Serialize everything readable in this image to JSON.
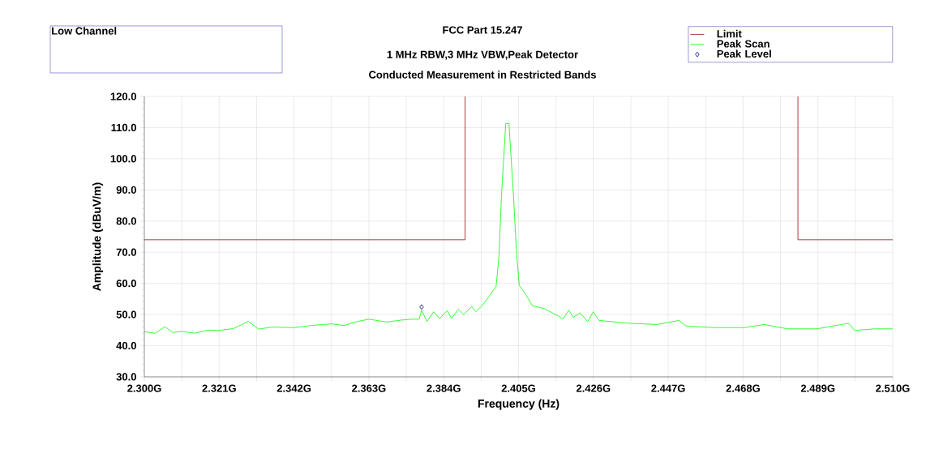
{
  "chart_data": {
    "type": "line",
    "title": "FCC Part 15.247",
    "subtitle": "1 MHz RBW,3 MHz VBW,Peak Detector",
    "annotations": [
      "Low Channel",
      "Conducted Measurement in Restricted Bands"
    ],
    "xlabel": "Frequency (Hz)",
    "ylabel": "Amplitude (dBuV/m)",
    "xlim": [
      2.3,
      2.51
    ],
    "ylim": [
      30,
      120
    ],
    "xticks": [
      {
        "value": 2.3,
        "label": "2.300G"
      },
      {
        "value": 2.3105,
        "label": null
      },
      {
        "value": 2.321,
        "label": "2.321G"
      },
      {
        "value": 2.3315,
        "label": null
      },
      {
        "value": 2.342,
        "label": "2.342G"
      },
      {
        "value": 2.3525,
        "label": null
      },
      {
        "value": 2.363,
        "label": "2.363G"
      },
      {
        "value": 2.3735,
        "label": null
      },
      {
        "value": 2.384,
        "label": "2.384G"
      },
      {
        "value": 2.3945,
        "label": null
      },
      {
        "value": 2.405,
        "label": "2.405G"
      },
      {
        "value": 2.4155,
        "label": null
      },
      {
        "value": 2.426,
        "label": "2.426G"
      },
      {
        "value": 2.4365,
        "label": null
      },
      {
        "value": 2.447,
        "label": "2.447G"
      },
      {
        "value": 2.4575,
        "label": null
      },
      {
        "value": 2.468,
        "label": "2.468G"
      },
      {
        "value": 2.4785,
        "label": null
      },
      {
        "value": 2.489,
        "label": "2.489G"
      },
      {
        "value": 2.4995,
        "label": null
      },
      {
        "value": 2.51,
        "label": "2.510G"
      }
    ],
    "yticks": [
      {
        "value": 30,
        "label": "30.0"
      },
      {
        "value": 40,
        "label": "40.0"
      },
      {
        "value": 50,
        "label": "50.0"
      },
      {
        "value": 60,
        "label": "60.0"
      },
      {
        "value": 70,
        "label": "70.0"
      },
      {
        "value": 80,
        "label": "80.0"
      },
      {
        "value": 90,
        "label": "90.0"
      },
      {
        "value": 100,
        "label": "100.0"
      },
      {
        "value": 110,
        "label": "110.0"
      },
      {
        "value": 120,
        "label": "120.0"
      }
    ],
    "grid": true,
    "legend": "top right",
    "series": [
      {
        "name": "Limit",
        "color": "#8b1010",
        "x": [
          2.3,
          2.39,
          2.39,
          2.44,
          2.4834,
          2.4834,
          2.51
        ],
        "values": [
          74,
          74,
          120,
          null,
          120,
          74,
          74
        ]
      },
      {
        "name": "Peak Scan",
        "color": "#00ff00",
        "x": [
          2.3,
          2.303,
          2.3058,
          2.308,
          2.3105,
          2.314,
          2.318,
          2.321,
          2.325,
          2.3292,
          2.332,
          2.336,
          2.342,
          2.347,
          2.3525,
          2.356,
          2.36,
          2.363,
          2.368,
          2.372,
          2.375,
          2.3771,
          2.3778,
          2.3793,
          2.3812,
          2.3828,
          2.385,
          2.3862,
          2.3881,
          2.3896,
          2.3919,
          2.393,
          2.3949,
          2.3968,
          2.3987,
          2.3995,
          2.4002,
          2.4014,
          2.4023,
          2.4036,
          2.4044,
          2.4052,
          2.4065,
          2.4089,
          2.4122,
          2.4154,
          2.4175,
          2.4191,
          2.4203,
          2.4223,
          2.4244,
          2.426,
          2.4276,
          2.4358,
          2.4439,
          2.45,
          2.452,
          2.4602,
          2.4683,
          2.474,
          2.4805,
          2.4887,
          2.4976,
          2.4993,
          2.505,
          2.51
        ],
        "values": [
          44.5,
          44.0,
          46.1,
          44.2,
          44.6,
          44.0,
          45.0,
          44.9,
          45.5,
          47.8,
          45.3,
          46.0,
          45.8,
          46.5,
          47.0,
          46.5,
          47.8,
          48.5,
          47.6,
          48.2,
          48.5,
          48.5,
          51.3,
          47.8,
          50.9,
          48.7,
          51.3,
          48.7,
          51.7,
          50.0,
          52.6,
          50.9,
          53.0,
          56.0,
          59.0,
          68.7,
          87.8,
          111.3,
          111.3,
          87.8,
          70.4,
          59.3,
          57.4,
          52.8,
          51.9,
          50.0,
          48.6,
          51.4,
          49.1,
          50.5,
          47.7,
          50.9,
          48.1,
          47.2,
          46.8,
          48.1,
          46.3,
          45.8,
          45.8,
          46.8,
          45.4,
          45.4,
          47.2,
          44.9,
          45.4,
          45.4
        ]
      },
      {
        "name": "Peak Level",
        "type": "scatter",
        "color": "#000080",
        "marker": "diamond",
        "x": [
          2.3778
        ],
        "values": [
          52.4
        ]
      }
    ]
  }
}
